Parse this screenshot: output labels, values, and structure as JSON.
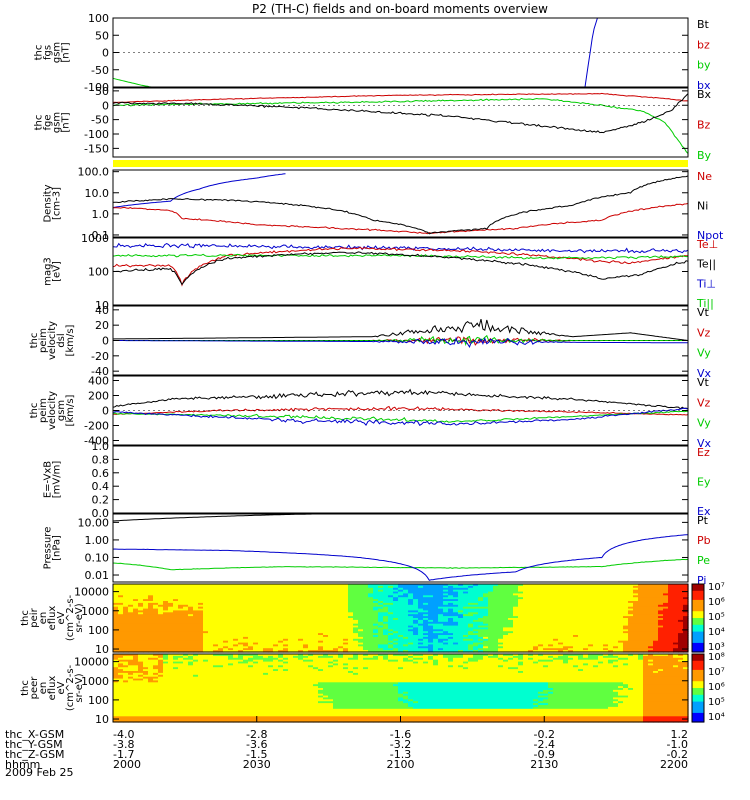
{
  "title": "P2 (TH-C) fields and on-board moments overview",
  "date": "2009 Feb 25",
  "colors": {
    "black": "#000000",
    "red": "#cc0000",
    "green": "#00cc00",
    "blue": "#0000cc",
    "yellow": "#ffff00"
  },
  "chart_data": [
    {
      "type": "line",
      "ylabel": [
        "thc",
        "fgs",
        "gsm",
        "[nT]"
      ],
      "ylim": [
        -100,
        100
      ],
      "yticks": [
        "100",
        "50",
        "0",
        "-50",
        "-100"
      ],
      "tickvals": [
        100,
        50,
        0,
        -50,
        -100
      ],
      "legend": [
        {
          "name": "Bt",
          "color": "#000000"
        },
        {
          "name": "bz",
          "color": "#cc0000"
        },
        {
          "name": "by",
          "color": "#00cc00"
        },
        {
          "name": "bx",
          "color": "#0000cc"
        }
      ]
    },
    {
      "type": "line",
      "ylabel": [
        "thc",
        "fge",
        "gsm",
        "[nT]"
      ],
      "ylim": [
        -180,
        60
      ],
      "yticks": [
        "50",
        "0",
        "-50",
        "-100",
        "-150"
      ],
      "tickvals": [
        50,
        0,
        -50,
        -100,
        -150
      ],
      "legend": [
        {
          "name": "Bx",
          "color": "#000000"
        },
        {
          "name": "Bz",
          "color": "#cc0000"
        },
        {
          "name": "By",
          "color": "#00cc00"
        }
      ]
    },
    {
      "type": "line",
      "log": true,
      "ylabel": [
        "Density",
        "[cm-3]"
      ],
      "ylim": [
        0.08,
        120
      ],
      "yticks": [
        "100.0",
        "10.0",
        "1.0",
        "0.1"
      ],
      "tickvals": [
        100,
        10,
        1,
        0.1
      ],
      "legend": [
        {
          "name": "Ne",
          "color": "#cc0000"
        },
        {
          "name": "Ni",
          "color": "#000000"
        },
        {
          "name": "Npot",
          "color": "#0000cc"
        }
      ]
    },
    {
      "type": "line",
      "log": true,
      "ylabel": [
        "mag3",
        "[eV]"
      ],
      "ylim": [
        10,
        1000
      ],
      "yticks": [
        "1000",
        "100",
        "10"
      ],
      "tickvals": [
        1000,
        100,
        10
      ],
      "legend": [
        {
          "name": "Te⊥",
          "color": "#cc0000"
        },
        {
          "name": "Te||",
          "color": "#000000"
        },
        {
          "name": "Ti⊥",
          "color": "#0000cc"
        },
        {
          "name": "Ti||",
          "color": "#00cc00"
        }
      ]
    },
    {
      "type": "line",
      "ylabel": [
        "thc",
        "peim",
        "velocity",
        "dsl",
        "[km/s]"
      ],
      "ylim": [
        -45,
        45
      ],
      "yticks": [
        "40",
        "20",
        "0",
        "-20",
        "-40"
      ],
      "tickvals": [
        40,
        20,
        0,
        -20,
        -40
      ],
      "legend": [
        {
          "name": "Vt",
          "color": "#000000"
        },
        {
          "name": "Vz",
          "color": "#cc0000"
        },
        {
          "name": "Vy",
          "color": "#00cc00"
        },
        {
          "name": "Vx",
          "color": "#0000cc"
        }
      ]
    },
    {
      "type": "line",
      "ylabel": [
        "thc",
        "peim",
        "velocity",
        "gsm",
        "[km/s]"
      ],
      "ylim": [
        -460,
        460
      ],
      "yticks": [
        "400",
        "200",
        "0",
        "-200",
        "-400"
      ],
      "tickvals": [
        400,
        200,
        0,
        -200,
        -400
      ],
      "legend": [
        {
          "name": "Vt",
          "color": "#000000"
        },
        {
          "name": "Vz",
          "color": "#cc0000"
        },
        {
          "name": "Vy",
          "color": "#00cc00"
        },
        {
          "name": "Vx",
          "color": "#0000cc"
        }
      ]
    },
    {
      "type": "line",
      "ylabel": [
        "E=-VxB",
        "[mV/m]"
      ],
      "ylim": [
        0,
        1.0
      ],
      "yticks": [
        "1.0",
        "0.8",
        "0.6",
        "0.4",
        "0.2",
        "0.0"
      ],
      "tickvals": [
        1.0,
        0.8,
        0.6,
        0.4,
        0.2,
        0.0
      ],
      "legend": [
        {
          "name": "Ez",
          "color": "#cc0000"
        },
        {
          "name": "Ey",
          "color": "#00cc00"
        },
        {
          "name": "Ex",
          "color": "#0000cc"
        }
      ]
    },
    {
      "type": "line",
      "log": true,
      "ylabel": [
        "Pressure",
        "[nPa]"
      ],
      "ylim": [
        0.004,
        30
      ],
      "yticks": [
        "10.00",
        "1.00",
        "0.10",
        "0.01"
      ],
      "tickvals": [
        10,
        1,
        0.1,
        0.01
      ],
      "legend": [
        {
          "name": "Pt",
          "color": "#000000"
        },
        {
          "name": "Pb",
          "color": "#cc0000"
        },
        {
          "name": "Pe",
          "color": "#00cc00"
        },
        {
          "name": "Pi",
          "color": "#0000cc"
        }
      ]
    },
    {
      "type": "heatmap",
      "log": true,
      "ylabel": [
        "thc",
        "peir",
        "en",
        "eflux",
        "eV",
        "(cm^2-s-",
        "sr-eV)"
      ],
      "ylim": [
        7,
        25000
      ],
      "yticks": [
        "10000",
        "1000",
        "100",
        "10"
      ],
      "tickvals": [
        10000,
        1000,
        100,
        10
      ],
      "colorbar": [
        "10⁷",
        "10⁶",
        "10⁵",
        "10⁴",
        "10³"
      ]
    },
    {
      "type": "heatmap",
      "log": true,
      "ylabel": [
        "thc",
        "peer",
        "en",
        "eflux",
        "eV",
        "(cm^2-s-",
        "sr-eV)"
      ],
      "ylim": [
        7,
        25000
      ],
      "yticks": [
        "10000",
        "1000",
        "100",
        "10"
      ],
      "tickvals": [
        10000,
        1000,
        100,
        10
      ],
      "colorbar": [
        "10⁸",
        "10⁷",
        "10⁶",
        "10⁵",
        "10⁴"
      ]
    }
  ],
  "xaxis": {
    "rows": [
      {
        "label": "thc_X-GSM",
        "values": [
          "-4.0",
          "-2.8",
          "-1.6",
          "-0.2",
          "1.2"
        ]
      },
      {
        "label": "thc_Y-GSM",
        "values": [
          "-3.8",
          "-3.6",
          "-3.2",
          "-2.4",
          "-1.0"
        ]
      },
      {
        "label": "thc_Z-GSM",
        "values": [
          "-1.7",
          "-1.5",
          "-1.3",
          "-0.9",
          "-0.2"
        ]
      },
      {
        "label": "hhmm",
        "values": [
          "2000",
          "2030",
          "2100",
          "2130",
          "2200"
        ]
      }
    ]
  }
}
